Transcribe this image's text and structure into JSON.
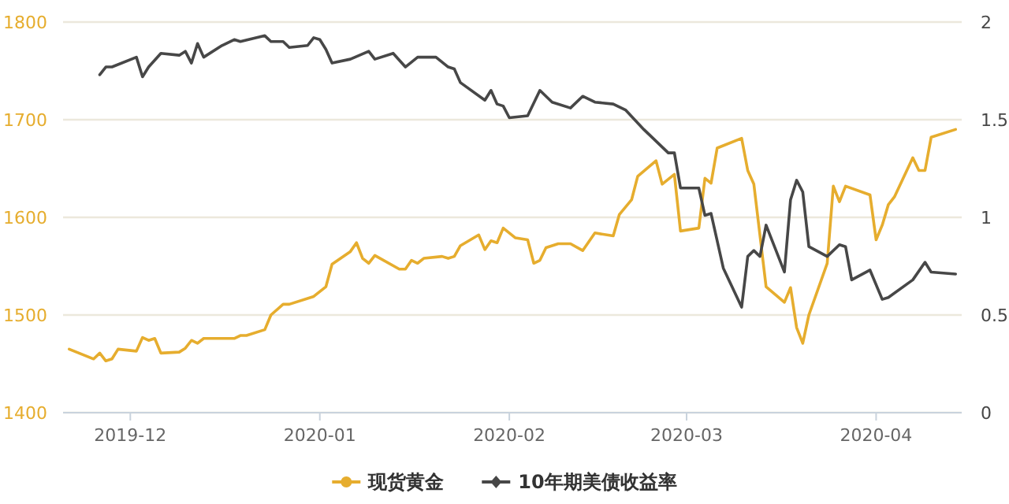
{
  "chart_data": {
    "type": "line",
    "xlim": [
      "2019-11-20",
      "2020-04-15"
    ],
    "xticks": [
      "2019-12",
      "2020-01",
      "2020-02",
      "2020-03",
      "2020-04"
    ],
    "ylim": [
      1400,
      1800
    ],
    "yticks": [
      1400,
      1500,
      1600,
      1700,
      1800
    ],
    "y2lim": [
      0,
      2
    ],
    "y2ticks": [
      0,
      0.5,
      1,
      1.5,
      2
    ],
    "grid": "y",
    "legend": "bottom",
    "line_style": "solid",
    "series": [
      {
        "name": "现货黄金",
        "color": "#e6ad2e",
        "x": [
          "2019-11-21",
          "2019-11-25",
          "2019-11-26",
          "2019-11-27",
          "2019-11-28",
          "2019-11-29",
          "2019-12-02",
          "2019-12-03",
          "2019-12-04",
          "2019-12-05",
          "2019-12-06",
          "2019-12-09",
          "2019-12-10",
          "2019-12-11",
          "2019-12-12",
          "2019-12-13",
          "2019-12-18",
          "2019-12-19",
          "2019-12-20",
          "2019-12-23",
          "2019-12-24",
          "2019-12-26",
          "2019-12-27",
          "2019-12-31",
          "2020-01-02",
          "2020-01-03",
          "2020-01-06",
          "2020-01-07",
          "2020-01-08",
          "2020-01-09",
          "2020-01-10",
          "2020-01-14",
          "2020-01-15",
          "2020-01-16",
          "2020-01-17",
          "2020-01-18",
          "2020-01-21",
          "2020-01-22",
          "2020-01-23",
          "2020-01-24",
          "2020-01-27",
          "2020-01-28",
          "2020-01-29",
          "2020-01-30",
          "2020-01-31",
          "2020-02-02",
          "2020-02-04",
          "2020-02-05",
          "2020-02-06",
          "2020-02-07",
          "2020-02-09",
          "2020-02-11",
          "2020-02-13",
          "2020-02-15",
          "2020-02-18",
          "2020-02-19",
          "2020-02-21",
          "2020-02-22",
          "2020-02-25",
          "2020-02-26",
          "2020-02-28",
          "2020-02-29",
          "2020-03-03",
          "2020-03-04",
          "2020-03-05",
          "2020-03-06",
          "2020-03-10",
          "2020-03-11",
          "2020-03-12",
          "2020-03-14",
          "2020-03-17",
          "2020-03-18",
          "2020-03-19",
          "2020-03-20",
          "2020-03-21",
          "2020-03-24",
          "2020-03-25",
          "2020-03-26",
          "2020-03-27",
          "2020-03-31",
          "2020-04-01",
          "2020-04-02",
          "2020-04-03",
          "2020-04-04",
          "2020-04-07",
          "2020-04-08",
          "2020-04-09",
          "2020-04-10",
          "2020-04-14"
        ],
        "values": [
          1465,
          1455,
          1461,
          1453,
          1455,
          1465,
          1463,
          1477,
          1474,
          1476,
          1461,
          1462,
          1466,
          1474,
          1471,
          1476,
          1476,
          1479,
          1479,
          1485,
          1500,
          1511,
          1511,
          1519,
          1529,
          1552,
          1565,
          1574,
          1558,
          1553,
          1561,
          1547,
          1547,
          1556,
          1553,
          1558,
          1560,
          1558,
          1560,
          1571,
          1582,
          1567,
          1576,
          1574,
          1589,
          1579,
          1577,
          1553,
          1556,
          1569,
          1573,
          1573,
          1566,
          1584,
          1581,
          1603,
          1618,
          1642,
          1658,
          1634,
          1644,
          1586,
          1589,
          1640,
          1635,
          1671,
          1681,
          1648,
          1634,
          1529,
          1513,
          1528,
          1487,
          1471,
          1500,
          1553,
          1632,
          1616,
          1632,
          1623,
          1577,
          1592,
          1613,
          1621,
          1661,
          1648,
          1648,
          1682,
          1690
        ]
      },
      {
        "name": "10年期美债收益率",
        "color": "#474747",
        "axis": "y2",
        "x": [
          "2019-11-26",
          "2019-11-27",
          "2019-11-28",
          "2019-12-02",
          "2019-12-03",
          "2019-12-04",
          "2019-12-06",
          "2019-12-09",
          "2019-12-10",
          "2019-12-11",
          "2019-12-12",
          "2019-12-13",
          "2019-12-16",
          "2019-12-18",
          "2019-12-19",
          "2019-12-23",
          "2019-12-24",
          "2019-12-26",
          "2019-12-27",
          "2019-12-30",
          "2019-12-31",
          "2020-01-01",
          "2020-01-02",
          "2020-01-03",
          "2020-01-06",
          "2020-01-09",
          "2020-01-10",
          "2020-01-13",
          "2020-01-15",
          "2020-01-17",
          "2020-01-20",
          "2020-01-22",
          "2020-01-23",
          "2020-01-24",
          "2020-01-28",
          "2020-01-29",
          "2020-01-30",
          "2020-01-31",
          "2020-02-01",
          "2020-02-04",
          "2020-02-06",
          "2020-02-08",
          "2020-02-11",
          "2020-02-13",
          "2020-02-15",
          "2020-02-18",
          "2020-02-20",
          "2020-02-23",
          "2020-02-27",
          "2020-02-28",
          "2020-02-29",
          "2020-03-03",
          "2020-03-04",
          "2020-03-05",
          "2020-03-07",
          "2020-03-10",
          "2020-03-11",
          "2020-03-12",
          "2020-03-13",
          "2020-03-14",
          "2020-03-17",
          "2020-03-18",
          "2020-03-19",
          "2020-03-20",
          "2020-03-21",
          "2020-03-24",
          "2020-03-26",
          "2020-03-27",
          "2020-03-28",
          "2020-03-31",
          "2020-04-02",
          "2020-04-03",
          "2020-04-07",
          "2020-04-09",
          "2020-04-10",
          "2020-04-14"
        ],
        "values": [
          1.73,
          1.77,
          1.77,
          1.82,
          1.72,
          1.77,
          1.84,
          1.83,
          1.85,
          1.79,
          1.89,
          1.82,
          1.88,
          1.91,
          1.9,
          1.93,
          1.9,
          1.9,
          1.87,
          1.88,
          1.92,
          1.91,
          1.86,
          1.79,
          1.81,
          1.85,
          1.81,
          1.84,
          1.77,
          1.82,
          1.82,
          1.77,
          1.76,
          1.69,
          1.6,
          1.65,
          1.58,
          1.57,
          1.51,
          1.52,
          1.65,
          1.59,
          1.56,
          1.62,
          1.59,
          1.58,
          1.55,
          1.45,
          1.33,
          1.33,
          1.15,
          1.15,
          1.01,
          1.02,
          0.74,
          0.54,
          0.8,
          0.83,
          0.8,
          0.96,
          0.72,
          1.09,
          1.19,
          1.13,
          0.85,
          0.8,
          0.86,
          0.85,
          0.68,
          0.73,
          0.58,
          0.59,
          0.68,
          0.77,
          0.72,
          0.71
        ]
      }
    ]
  }
}
